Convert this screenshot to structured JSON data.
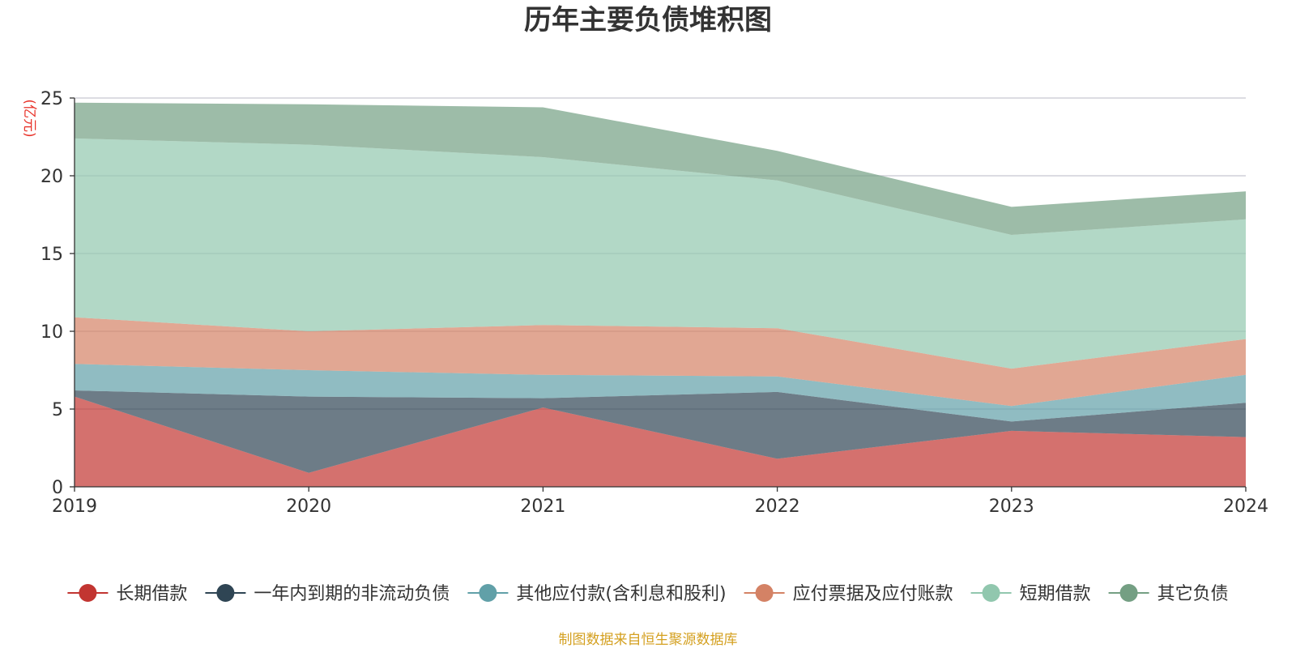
{
  "chart_data": {
    "type": "area",
    "stacked": true,
    "title": "历年主要负债堆积图",
    "unit": "(亿元)",
    "x": [
      "2019",
      "2020",
      "2021",
      "2022",
      "2023",
      "2024"
    ],
    "ylim": [
      0,
      25
    ],
    "yticks": [
      "0",
      "5",
      "10",
      "15",
      "20",
      "25"
    ],
    "grid": true,
    "legend_position": "bottom",
    "series": [
      {
        "name": "长期借款",
        "color": "#c23531",
        "values": [
          5.8,
          0.9,
          5.1,
          1.8,
          3.6,
          3.2
        ]
      },
      {
        "name": "一年内到期的非流动负债",
        "color": "#2f4554",
        "values": [
          0.4,
          4.9,
          0.6,
          4.3,
          0.6,
          2.2
        ]
      },
      {
        "name": "其他应付款(含利息和股利)",
        "color": "#61a0a8",
        "values": [
          1.7,
          1.7,
          1.5,
          1.0,
          1.0,
          1.8
        ]
      },
      {
        "name": "应付票据及应付账款",
        "color": "#d48265",
        "values": [
          3.0,
          2.5,
          3.2,
          3.1,
          2.4,
          2.3
        ]
      },
      {
        "name": "短期借款",
        "color": "#91c7ae",
        "values": [
          11.5,
          12.0,
          10.8,
          9.5,
          8.6,
          7.7
        ]
      },
      {
        "name": "其它负债",
        "color": "#749f83",
        "values": [
          2.3,
          2.6,
          3.2,
          1.9,
          1.8,
          1.8
        ]
      }
    ]
  },
  "source_note": "制图数据来自恒生聚源数据库",
  "colors": {
    "unit_label": "#e8332a",
    "source_note": "#d4a020",
    "grid": "#c8c8d0",
    "axis": "#333333"
  }
}
